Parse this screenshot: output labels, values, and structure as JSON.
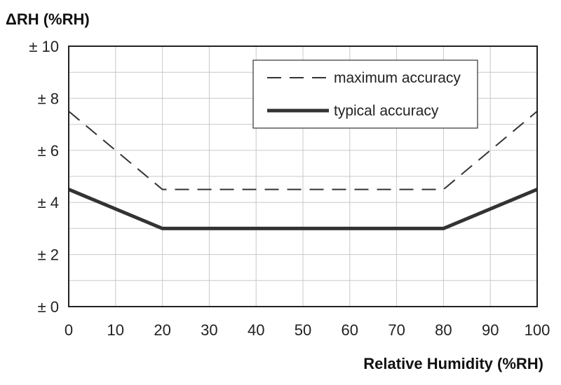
{
  "chart_data": {
    "type": "line",
    "ylabel": "ΔRH (%RH)",
    "xlabel": "Relative Humidity (%RH)",
    "xlim": [
      0,
      100
    ],
    "ylim": [
      0,
      10
    ],
    "x_ticks": [
      0,
      10,
      20,
      30,
      40,
      50,
      60,
      70,
      80,
      90,
      100
    ],
    "x_tick_labels": [
      "0",
      "10",
      "20",
      "30",
      "40",
      "50",
      "60",
      "70",
      "80",
      "90",
      "100"
    ],
    "y_ticks": [
      0,
      2,
      4,
      6,
      8,
      10
    ],
    "y_tick_labels": [
      "± 0",
      "± 2",
      "± 4",
      "± 6",
      "± 8",
      "± 10"
    ],
    "grid": true,
    "legend_position": "top-right",
    "series": [
      {
        "name": "maximum accuracy",
        "style": "dashed",
        "color": "#333333",
        "x": [
          0,
          20,
          80,
          100
        ],
        "y": [
          7.5,
          4.5,
          4.5,
          7.5
        ]
      },
      {
        "name": "typical accuracy",
        "style": "solid",
        "color": "#333333",
        "x": [
          0,
          20,
          80,
          100
        ],
        "y": [
          4.5,
          3,
          3,
          4.5
        ]
      }
    ]
  }
}
